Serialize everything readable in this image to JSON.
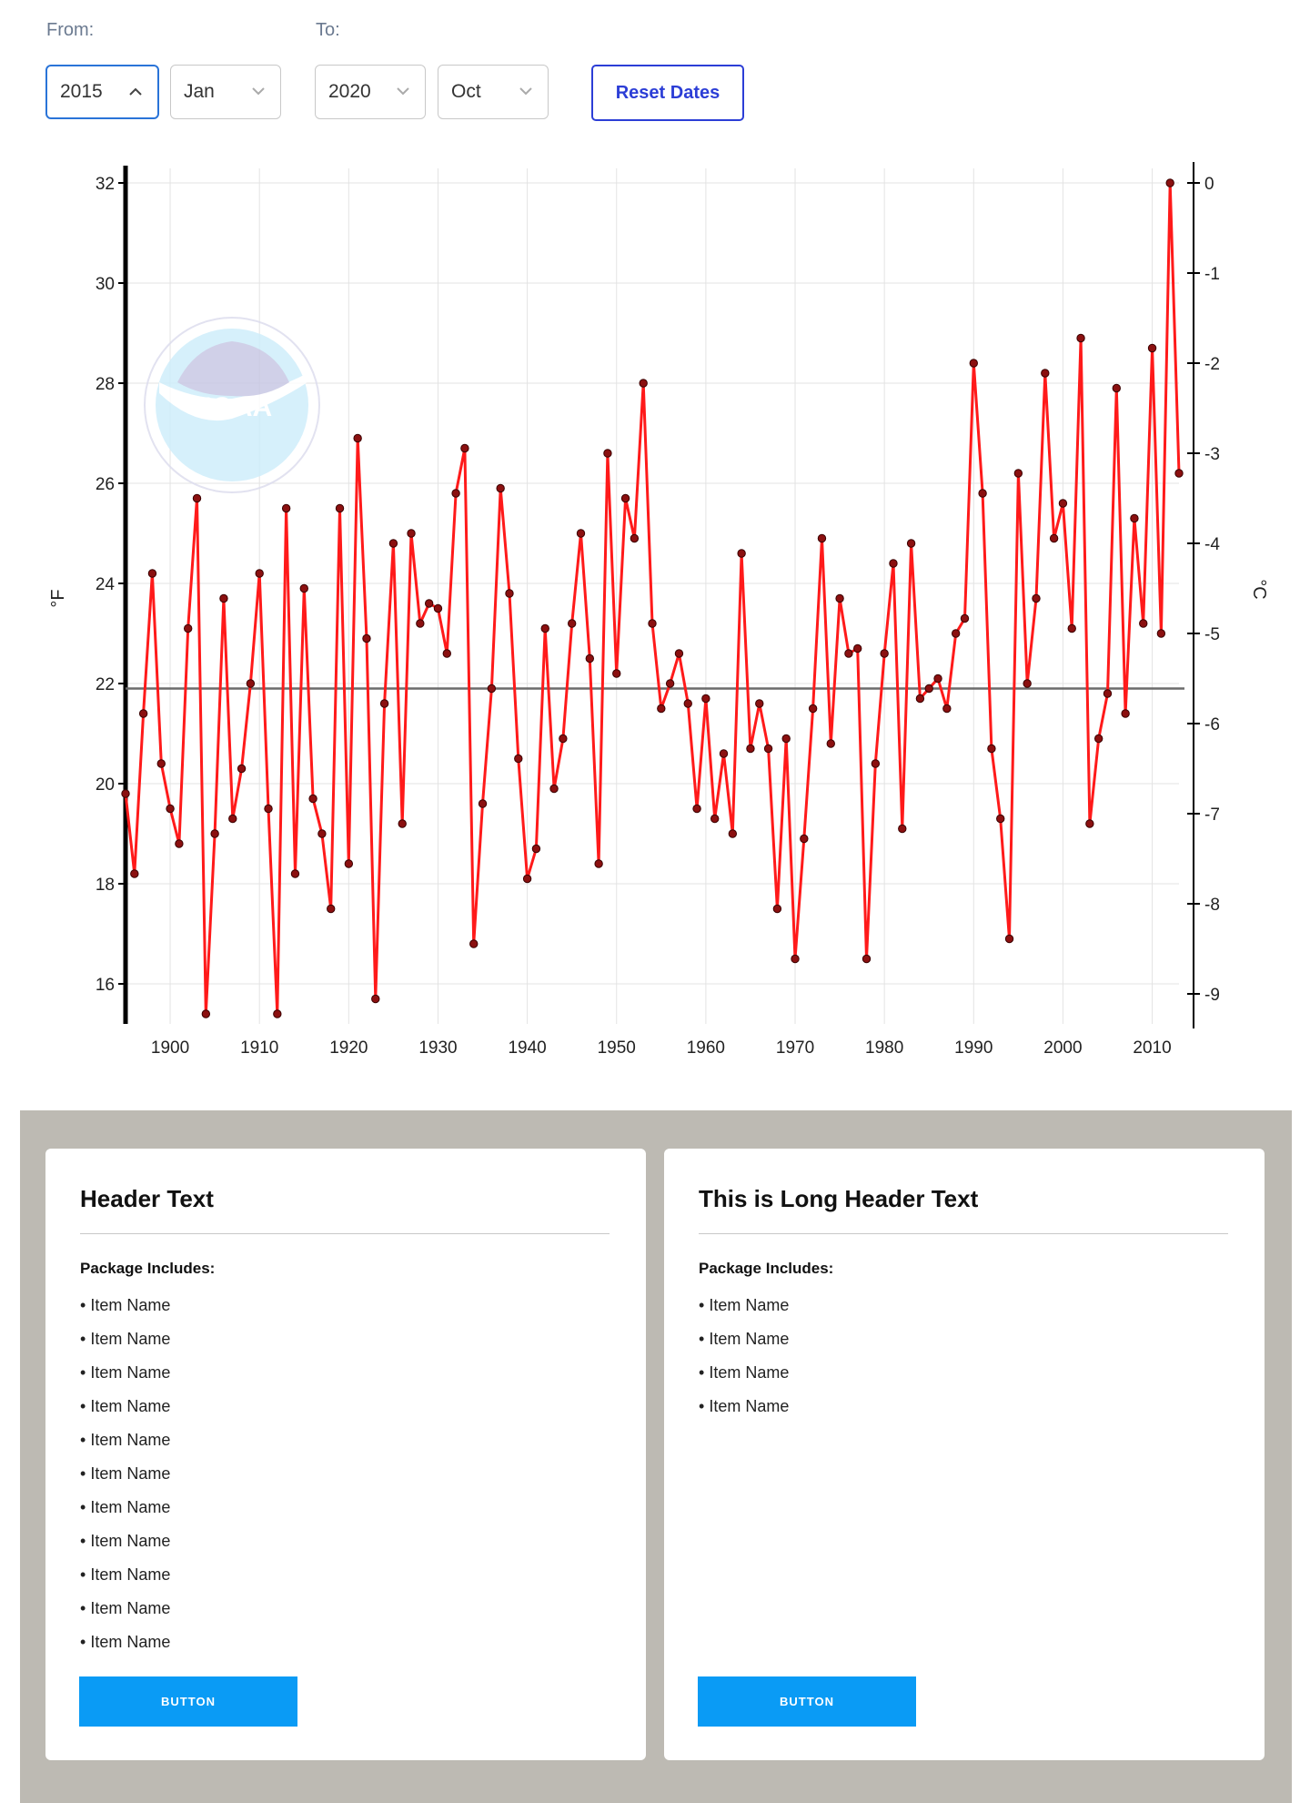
{
  "filters": {
    "from_label": "From:",
    "to_label": "To:",
    "from_year": "2015",
    "from_month": "Jan",
    "to_year": "2020",
    "to_month": "Oct",
    "reset_label": "Reset Dates"
  },
  "chart_data": {
    "type": "line",
    "ylabel": "°F",
    "y2label": "°C",
    "ylim": [
      15.2,
      32.2
    ],
    "xlim": [
      1895,
      2013
    ],
    "xticks": [
      1900,
      1910,
      1920,
      1930,
      1940,
      1950,
      1960,
      1970,
      1980,
      1990,
      2000,
      2010
    ],
    "yticks": [
      16,
      18,
      20,
      22,
      24,
      26,
      28,
      30,
      32
    ],
    "y2ticks": [
      0,
      -1,
      -2,
      -3,
      -4,
      -5,
      -6,
      -7,
      -8,
      -9
    ],
    "reference_line": 21.9,
    "line_color": "#ff1a1a",
    "logo_text": "NOAA",
    "series": [
      {
        "x": [
          1895,
          1896,
          1897,
          1898,
          1899,
          1900,
          1901,
          1902,
          1903,
          1904,
          1905,
          1906,
          1907,
          1908,
          1909,
          1910,
          1911,
          1912,
          1913,
          1914,
          1915,
          1916,
          1917,
          1918,
          1919,
          1920,
          1921,
          1922,
          1923,
          1924,
          1925,
          1926,
          1927,
          1928,
          1929,
          1930,
          1931,
          1932,
          1933,
          1934,
          1935,
          1936,
          1937,
          1938,
          1939,
          1940,
          1941,
          1942,
          1943,
          1944,
          1945,
          1946,
          1947,
          1948,
          1949,
          1950,
          1951,
          1952,
          1953,
          1954,
          1955,
          1956,
          1957,
          1958,
          1959,
          1960,
          1961,
          1962,
          1963,
          1964,
          1965,
          1966,
          1967,
          1968,
          1969,
          1970,
          1971,
          1972,
          1973,
          1974,
          1975,
          1976,
          1977,
          1978,
          1979,
          1980,
          1981,
          1982,
          1983,
          1984,
          1985,
          1986,
          1987,
          1988,
          1989,
          1990,
          1991,
          1992,
          1993,
          1994,
          1995,
          1996,
          1997,
          1998,
          1999,
          2000,
          2001,
          2002,
          2003,
          2004,
          2005,
          2006,
          2007,
          2008,
          2009,
          2010,
          2011,
          2012,
          2013
        ],
        "y": [
          19.8,
          18.2,
          21.4,
          24.2,
          20.4,
          19.5,
          18.8,
          23.1,
          25.7,
          15.4,
          19.0,
          23.7,
          19.3,
          20.3,
          22.0,
          24.2,
          19.5,
          15.4,
          25.5,
          18.2,
          23.9,
          19.7,
          19.0,
          17.5,
          25.5,
          18.4,
          26.9,
          22.9,
          15.7,
          21.6,
          24.8,
          19.2,
          25.0,
          23.2,
          23.6,
          23.5,
          22.6,
          25.8,
          26.7,
          16.8,
          19.6,
          21.9,
          25.9,
          23.8,
          20.5,
          18.1,
          18.7,
          23.1,
          19.9,
          20.9,
          23.2,
          25.0,
          22.5,
          18.4,
          26.6,
          22.2,
          25.7,
          24.9,
          28.0,
          23.2,
          21.5,
          22.0,
          22.6,
          21.6,
          19.5,
          21.7,
          19.3,
          20.6,
          19.0,
          24.6,
          20.7,
          21.6,
          20.7,
          17.5,
          20.9,
          16.5,
          18.9,
          21.5,
          24.9,
          20.8,
          23.7,
          22.6,
          22.7,
          16.5,
          20.4,
          22.6,
          24.4,
          19.1,
          24.8,
          21.7,
          21.9,
          22.1,
          21.5,
          23.0,
          23.3,
          28.4,
          25.8,
          20.7,
          19.3,
          16.9,
          26.2,
          22.0,
          23.7,
          28.2,
          24.9,
          25.6,
          23.1,
          28.9,
          19.2,
          20.9,
          21.8,
          27.9,
          21.4,
          25.3,
          23.2,
          28.7,
          23.0,
          32.0,
          26.2
        ]
      }
    ]
  },
  "cards": [
    {
      "header": "Header Text",
      "includes_label": "Package Includes:",
      "items": [
        "Item Name",
        "Item Name",
        "Item Name",
        "Item Name",
        "Item Name",
        "Item Name",
        "Item Name",
        "Item Name",
        "Item Name",
        "Item Name",
        "Item Name"
      ],
      "button": "BUTTON"
    },
    {
      "header": "This is Long Header Text",
      "includes_label": "Package Includes:",
      "items": [
        "Item Name",
        "Item Name",
        "Item Name",
        "Item Name"
      ],
      "button": "BUTTON"
    }
  ]
}
